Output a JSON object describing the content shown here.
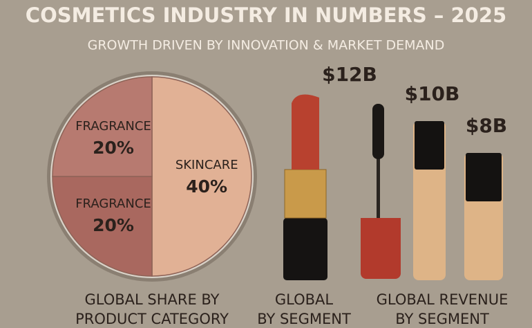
{
  "header": {
    "title": "COSMETICS INDUSTRY IN NUMBERS – 2025",
    "subtitle": "GROWTH DRIVEN BY INNOVATION & MARKET DEMAND"
  },
  "chart_data": [
    {
      "type": "pie",
      "title": [
        "GLOBAL SHARE BY",
        "PRODUCT CATEGORY"
      ],
      "categories": [
        "SKINCARE",
        "FRAGRANCE",
        "FRAGRANCE"
      ],
      "values": [
        40,
        20,
        20
      ],
      "value_labels": [
        "40%",
        "20%",
        "20%"
      ],
      "colors": [
        "#e1b195",
        "#a9685f",
        "#b77a70"
      ]
    },
    {
      "type": "bar",
      "title": [
        "GLOBAL",
        "BY SEGMENT"
      ],
      "categories": [
        null
      ],
      "values": [
        12
      ],
      "value_labels": [
        "$12B"
      ]
    },
    {
      "type": "bar",
      "title": [
        "GLOBAL REVENUE",
        "BY SEGMENT"
      ],
      "categories": [
        null,
        null
      ],
      "values": [
        10,
        8
      ],
      "value_labels": [
        "$10B",
        "$8B"
      ]
    }
  ]
}
